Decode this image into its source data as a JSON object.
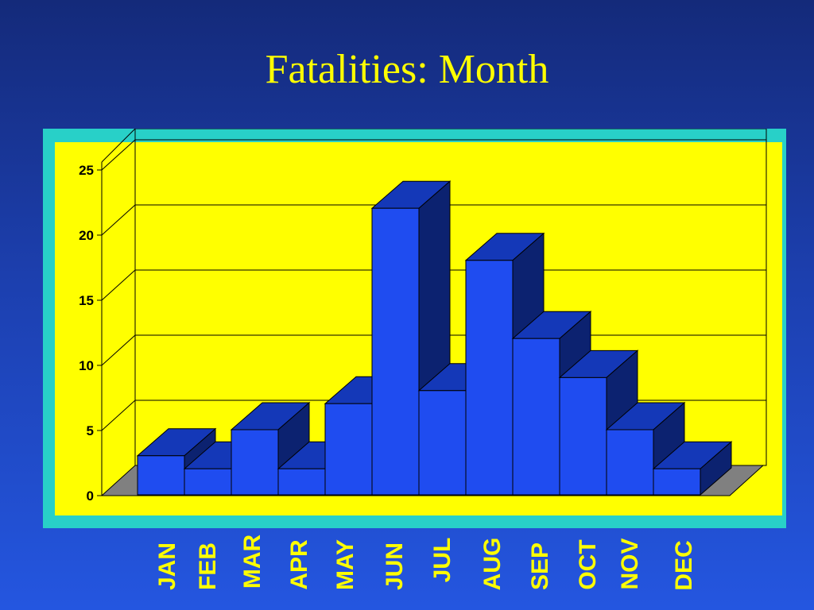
{
  "title": "Fatalities: Month",
  "chart_data": {
    "type": "bar",
    "title": "Fatalities: Month",
    "categories": [
      "JAN",
      "FEB",
      "MAR",
      "APR",
      "MAY",
      "JUN",
      "JUL",
      "AUG",
      "SEP",
      "OCT",
      "NOV",
      "DEC"
    ],
    "values": [
      3,
      2,
      5,
      2,
      7,
      22,
      8,
      18,
      12,
      9,
      5,
      2
    ],
    "ylim": [
      0,
      25
    ],
    "yticks": [
      "0",
      "5",
      "10",
      "15",
      "20",
      "25"
    ],
    "grid": true,
    "three_d": true,
    "xlabel": "",
    "ylabel": "",
    "colors": {
      "plot_background": "#ffff00",
      "frame": "#28d0c8",
      "bar_front": "#1f4cf0",
      "bar_top": "#1438b8",
      "bar_side": "#0c2270",
      "floor": "#808080",
      "labels": "#ffff00"
    }
  }
}
